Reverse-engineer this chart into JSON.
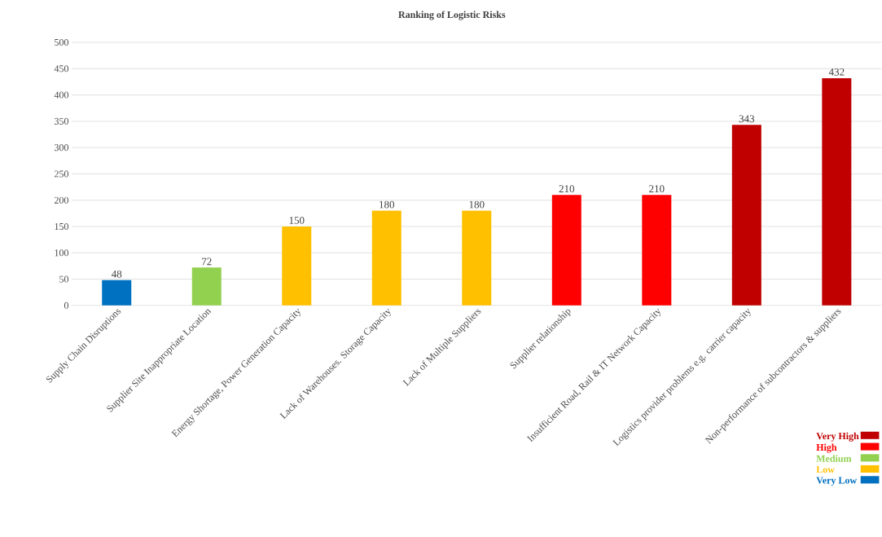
{
  "chart_data": {
    "type": "bar",
    "title": "Ranking of Logistic Risks",
    "categories": [
      "Supply Chain Disruptions",
      "Supplier Site Inappropriate Location",
      "Energy Shortage, Power Generation Capacity",
      "Lack of Warehouses. Storage Capacity",
      "Lack of Multiple Suppliers",
      "Supplier relationship",
      "Insufficient Road, Rail & IT Network Capacity",
      "Logistics provider problems e.g. carrier capacity",
      "Non-performance of subcontractors & suppliers"
    ],
    "series": [
      {
        "name": "Very High",
        "color": "#c00000",
        "values": [
          null,
          null,
          null,
          null,
          null,
          null,
          null,
          343,
          432
        ]
      },
      {
        "name": "High",
        "color": "#ff0000",
        "values": [
          null,
          null,
          null,
          null,
          null,
          210,
          210,
          null,
          null
        ]
      },
      {
        "name": "Medium",
        "color": "#92d050",
        "values": [
          null,
          72,
          null,
          null,
          null,
          null,
          null,
          null,
          null
        ]
      },
      {
        "name": "Low",
        "color": "#ffc000",
        "values": [
          null,
          null,
          150,
          180,
          180,
          null,
          null,
          null,
          null
        ]
      },
      {
        "name": "Very Low",
        "color": "#0070c0",
        "values": [
          48,
          null,
          null,
          null,
          null,
          null,
          null,
          null,
          null
        ]
      }
    ],
    "ylim": [
      0,
      500
    ],
    "yticks": [
      0,
      50,
      100,
      150,
      200,
      250,
      300,
      350,
      400,
      450,
      500
    ],
    "grid": "y",
    "data_labels": true,
    "legend": "bottom right"
  }
}
